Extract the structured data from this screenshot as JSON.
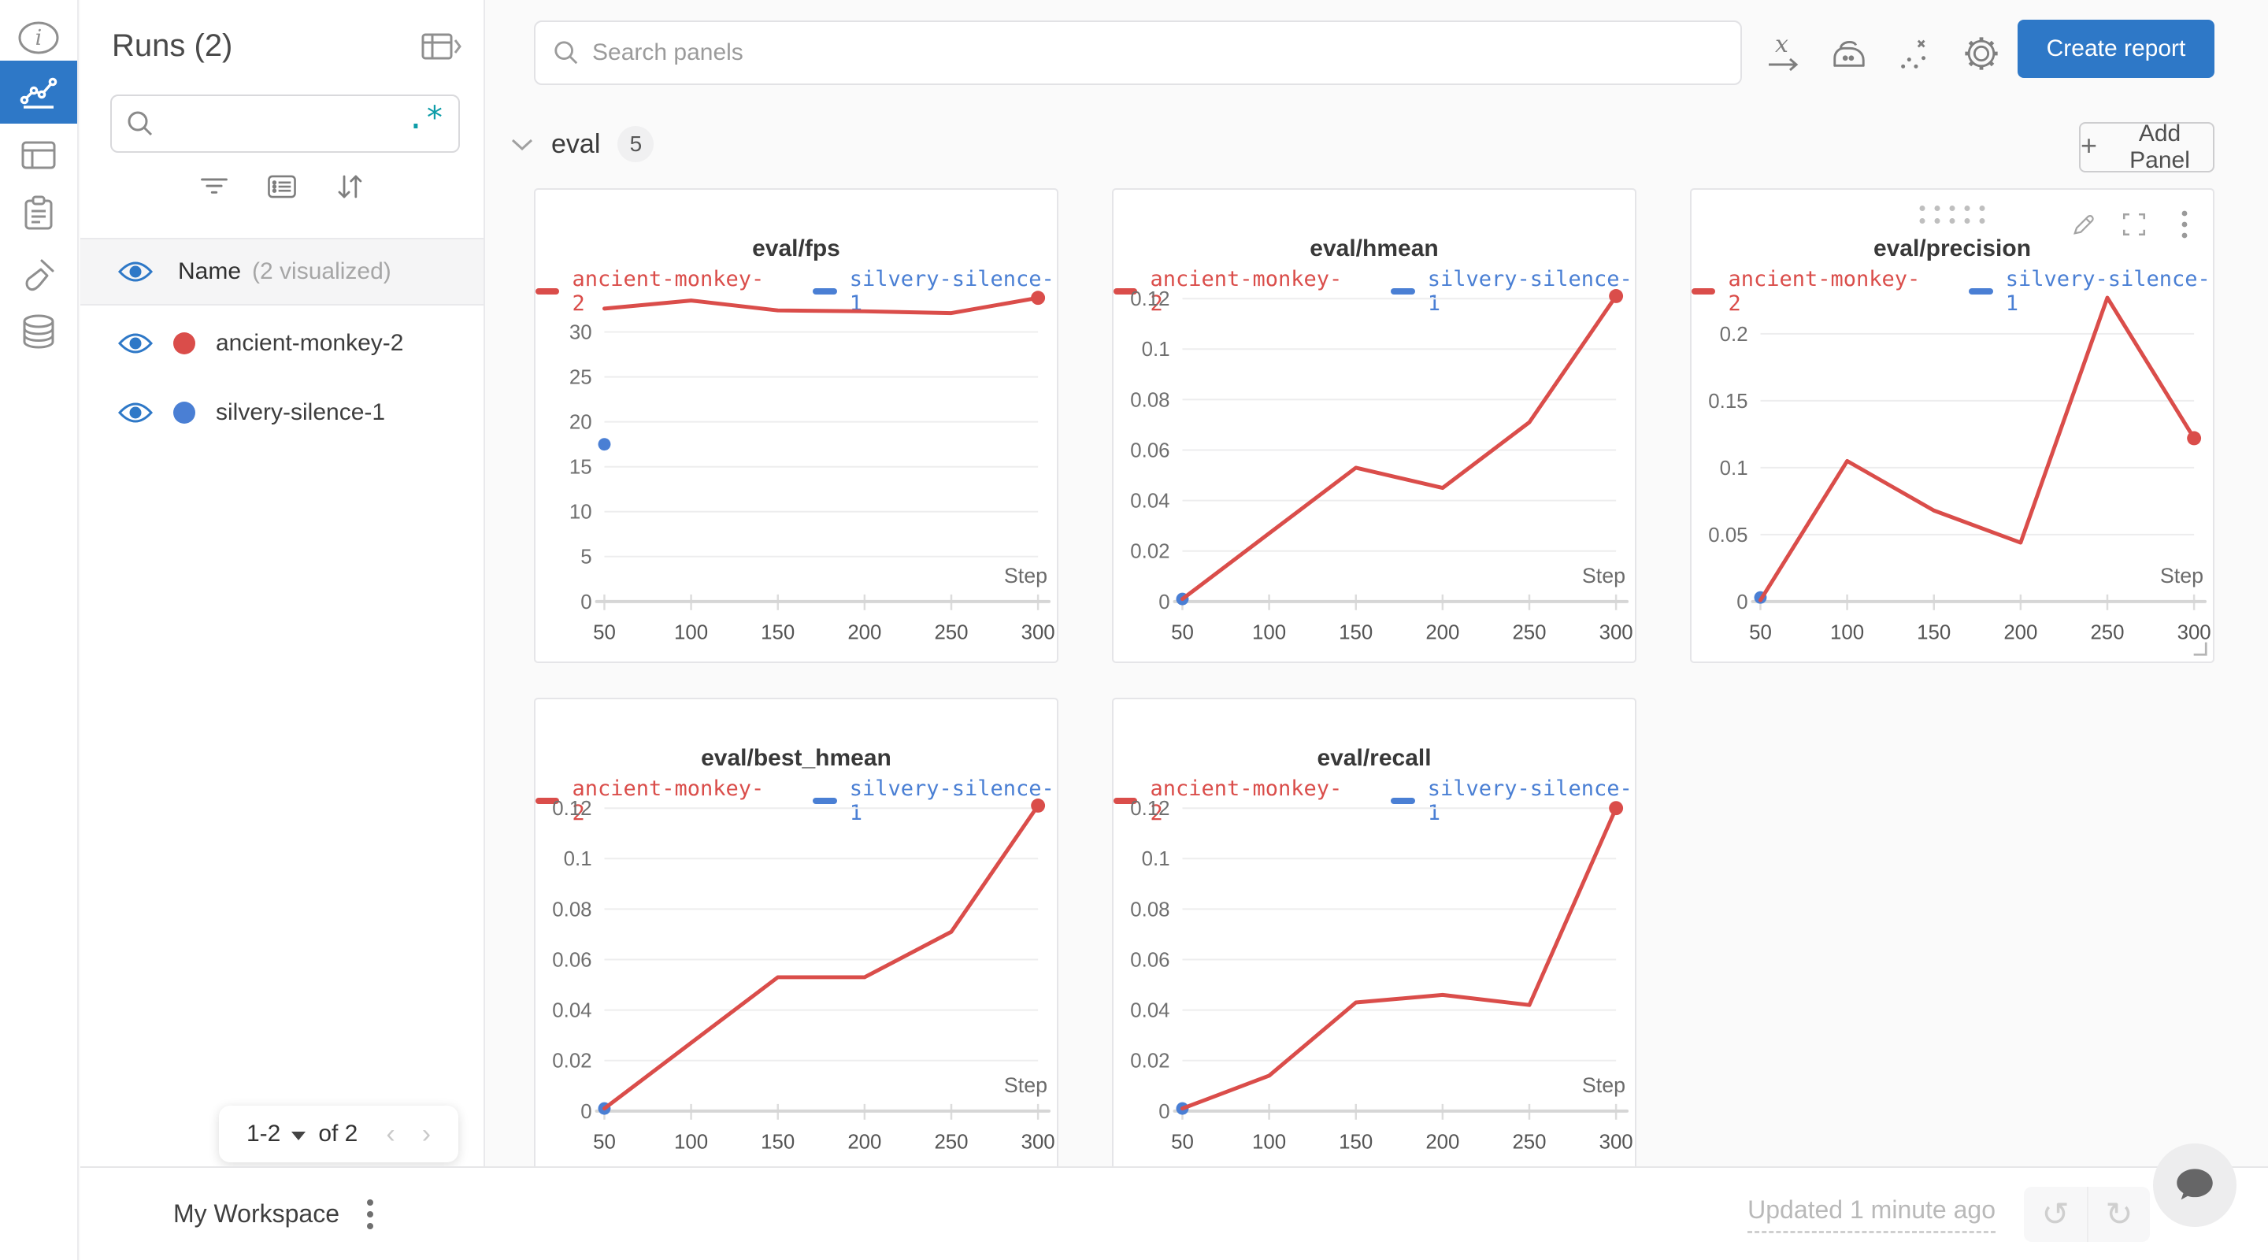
{
  "accent_color": "#2e78c7",
  "rail": {
    "items": [
      {
        "icon": "info-icon",
        "active": false
      },
      {
        "icon": "line-chart-icon",
        "active": true
      },
      {
        "icon": "runs-table-icon",
        "active": false
      },
      {
        "icon": "logs-clipboard-icon",
        "active": false
      },
      {
        "icon": "sweeps-broom-icon",
        "active": false
      },
      {
        "icon": "artifacts-database-icon",
        "active": false
      }
    ]
  },
  "runs_panel": {
    "title": "Runs (2)",
    "table_toggle_icon": "table-expand-icon",
    "search": {
      "value": "",
      "placeholder": "",
      "regex_label": ".*",
      "regex_color": "#0d9da8",
      "icon": "search-icon"
    },
    "toolbar_icons": [
      "filter-icon",
      "display-settings-icon",
      "sort-icon"
    ],
    "header_row": {
      "label": "Name",
      "note": "(2 visualized)",
      "icon": "eye-icon"
    },
    "runs": [
      {
        "name": "ancient-monkey-2",
        "color": "#da4d4a",
        "visible": true
      },
      {
        "name": "silvery-silence-1",
        "color": "#4a7fd4",
        "visible": true
      }
    ],
    "pagination": {
      "range": "1-2",
      "of_label": "of 2",
      "prev_icon": "chevron-left-icon",
      "next_icon": "chevron-right-icon"
    }
  },
  "topbar": {
    "search_placeholder": "Search panels",
    "icons": [
      "x-axis-icon",
      "smoothing-iron-icon",
      "outliers-icon",
      "settings-gear-icon"
    ],
    "create_report_label": "Create report"
  },
  "section": {
    "name": "eval",
    "panel_count": "5",
    "collapse_icon": "chevron-down-icon",
    "add_panel_label": "Add Panel",
    "add_panel_plus": "+"
  },
  "footer": {
    "workspace_label": "My Workspace",
    "menu_icon": "kebab-icon",
    "updated_label": "Updated 1 minute ago",
    "undo_glyph": "↺",
    "redo_glyph": "↻",
    "chat_icon": "chat-bubble-icon"
  },
  "chart_data": [
    {
      "type": "line",
      "title": "eval/fps",
      "xlabel": "Step",
      "x": [
        50,
        100,
        150,
        200,
        250,
        300
      ],
      "xlim": [
        50,
        300
      ],
      "xticks": [
        "50",
        "100",
        "150",
        "200",
        "250",
        "300"
      ],
      "yticks": [
        "0",
        "5",
        "10",
        "15",
        "20",
        "25",
        "30"
      ],
      "ylim": [
        0,
        34.5
      ],
      "grid": true,
      "legend_position": "top",
      "hovered": false,
      "series": [
        {
          "name": "ancient-monkey-2",
          "color": "#da4d4a",
          "values": [
            32.6,
            33.5,
            32.4,
            32.3,
            32.1,
            33.8
          ],
          "marker_last": true
        },
        {
          "name": "silvery-silence-1",
          "color": "#4a7fd4",
          "point_only": true,
          "x": [
            50
          ],
          "values": [
            17.5
          ]
        }
      ]
    },
    {
      "type": "line",
      "title": "eval/hmean",
      "xlabel": "Step",
      "x": [
        50,
        100,
        150,
        200,
        250,
        300
      ],
      "xlim": [
        50,
        300
      ],
      "xticks": [
        "50",
        "100",
        "150",
        "200",
        "250",
        "300"
      ],
      "yticks": [
        "0",
        "0.02",
        "0.04",
        "0.06",
        "0.08",
        "0.1",
        "0.12"
      ],
      "ylim": [
        0,
        0.1228
      ],
      "grid": true,
      "legend_position": "top",
      "hovered": false,
      "series": [
        {
          "name": "ancient-monkey-2",
          "color": "#da4d4a",
          "values": [
            0.001,
            0.027,
            0.053,
            0.045,
            0.071,
            0.121
          ],
          "marker_last": true
        },
        {
          "name": "silvery-silence-1",
          "color": "#4a7fd4",
          "point_only": true,
          "x": [
            50
          ],
          "values": [
            0.001
          ]
        }
      ]
    },
    {
      "type": "line",
      "title": "eval/precision",
      "xlabel": "Step",
      "x": [
        50,
        100,
        150,
        200,
        250,
        300
      ],
      "xlim": [
        50,
        300
      ],
      "xticks": [
        "50",
        "100",
        "150",
        "200",
        "250",
        "300"
      ],
      "yticks": [
        "0",
        "0.05",
        "0.1",
        "0.15",
        "0.2"
      ],
      "ylim": [
        0,
        0.2316
      ],
      "grid": true,
      "legend_position": "top",
      "hovered": true,
      "hover_icons": [
        "drag-handle-icon",
        "edit-pencil-icon",
        "fullscreen-icon",
        "kebab-icon",
        "resize-corner-icon"
      ],
      "series": [
        {
          "name": "ancient-monkey-2",
          "color": "#da4d4a",
          "values": [
            0.001,
            0.105,
            0.068,
            0.044,
            0.227,
            0.122
          ],
          "marker_last": true
        },
        {
          "name": "silvery-silence-1",
          "color": "#4a7fd4",
          "point_only": true,
          "x": [
            50
          ],
          "values": [
            0.003
          ]
        }
      ]
    },
    {
      "type": "line",
      "title": "eval/best_hmean",
      "xlabel": "Step",
      "x": [
        50,
        100,
        150,
        200,
        250,
        300
      ],
      "xlim": [
        50,
        300
      ],
      "xticks": [
        "50",
        "100",
        "150",
        "200",
        "250",
        "300"
      ],
      "yticks": [
        "0",
        "0.02",
        "0.04",
        "0.06",
        "0.08",
        "0.1",
        "0.12"
      ],
      "ylim": [
        0,
        0.1228
      ],
      "grid": true,
      "legend_position": "top",
      "hovered": false,
      "series": [
        {
          "name": "ancient-monkey-2",
          "color": "#da4d4a",
          "values": [
            0.001,
            0.027,
            0.053,
            0.053,
            0.071,
            0.121
          ],
          "marker_last": true
        },
        {
          "name": "silvery-silence-1",
          "color": "#4a7fd4",
          "point_only": true,
          "x": [
            50
          ],
          "values": [
            0.001
          ]
        }
      ]
    },
    {
      "type": "line",
      "title": "eval/recall",
      "xlabel": "Step",
      "x": [
        50,
        100,
        150,
        200,
        250,
        300
      ],
      "xlim": [
        50,
        300
      ],
      "xticks": [
        "50",
        "100",
        "150",
        "200",
        "250",
        "300"
      ],
      "yticks": [
        "0",
        "0.02",
        "0.04",
        "0.06",
        "0.08",
        "0.1",
        "0.12"
      ],
      "ylim": [
        0,
        0.1228
      ],
      "grid": true,
      "legend_position": "top",
      "hovered": false,
      "series": [
        {
          "name": "ancient-monkey-2",
          "color": "#da4d4a",
          "values": [
            0.001,
            0.014,
            0.043,
            0.046,
            0.042,
            0.12
          ],
          "marker_last": true
        },
        {
          "name": "silvery-silence-1",
          "color": "#4a7fd4",
          "point_only": true,
          "x": [
            50
          ],
          "values": [
            0.001
          ]
        }
      ]
    }
  ]
}
